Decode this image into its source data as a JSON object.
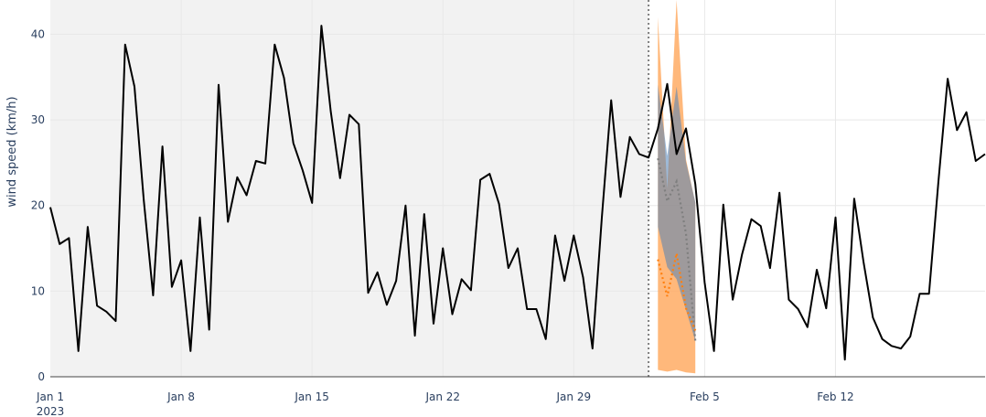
{
  "chart_data": {
    "type": "line",
    "title": "",
    "xlabel": "",
    "ylabel": "wind speed (km/h)",
    "xlim": [
      "2023-01-01",
      "2023-02-20"
    ],
    "ylim": [
      0,
      44
    ],
    "grid": true,
    "x_tick_labels": [
      {
        "date": "2023-01-01",
        "label": "Jan 1",
        "sublabel": "2023"
      },
      {
        "date": "2023-01-08",
        "label": "Jan 8"
      },
      {
        "date": "2023-01-15",
        "label": "Jan 15"
      },
      {
        "date": "2023-01-22",
        "label": "Jan 22"
      },
      {
        "date": "2023-01-29",
        "label": "Jan 29"
      },
      {
        "date": "2023-02-05",
        "label": "Feb 5"
      },
      {
        "date": "2023-02-12",
        "label": "Feb 12"
      }
    ],
    "y_ticks": [
      0,
      10,
      20,
      30,
      40
    ],
    "training_region": {
      "start": "2023-01-01",
      "end": "2023-02-02",
      "color": "#f2f2f2"
    },
    "forecast_start": "2023-02-02",
    "colors": {
      "observed": "#000000",
      "forecast_a": "#7f7f7f",
      "forecast_a_band": "#4f81b8",
      "forecast_b": "#ff7f0e",
      "forecast_b_band": "#ffa65a",
      "divider": "#7f7f7f",
      "grid": "#e8e8e8",
      "axis": "#444444"
    },
    "series": [
      {
        "role": "observed",
        "x": [
          "2023-01-01",
          "2023-01-01T12",
          "2023-01-02",
          "2023-01-02T12",
          "2023-01-03",
          "2023-01-03T12",
          "2023-01-04",
          "2023-01-04T12",
          "2023-01-05",
          "2023-01-05T12",
          "2023-01-06",
          "2023-01-06T12",
          "2023-01-07",
          "2023-01-07T12",
          "2023-01-08",
          "2023-01-08T12",
          "2023-01-09",
          "2023-01-09T12",
          "2023-01-10",
          "2023-01-10T12",
          "2023-01-11",
          "2023-01-11T12",
          "2023-01-12",
          "2023-01-12T12",
          "2023-01-13",
          "2023-01-13T12",
          "2023-01-14",
          "2023-01-14T12",
          "2023-01-15",
          "2023-01-15T12",
          "2023-01-16",
          "2023-01-16T12",
          "2023-01-17",
          "2023-01-17T12",
          "2023-01-18",
          "2023-01-18T12",
          "2023-01-19",
          "2023-01-19T12",
          "2023-01-20",
          "2023-01-20T12",
          "2023-01-21",
          "2023-01-21T12",
          "2023-01-22",
          "2023-01-22T12",
          "2023-01-23",
          "2023-01-23T12",
          "2023-01-24",
          "2023-01-24T12",
          "2023-01-25",
          "2023-01-25T12",
          "2023-01-26",
          "2023-01-26T12",
          "2023-01-27",
          "2023-01-27T12",
          "2023-01-28",
          "2023-01-28T12",
          "2023-01-29",
          "2023-01-29T12",
          "2023-01-30",
          "2023-01-30T12",
          "2023-01-31",
          "2023-01-31T12",
          "2023-02-01",
          "2023-02-01T12",
          "2023-02-02",
          "2023-02-02T12",
          "2023-02-03",
          "2023-02-03T12",
          "2023-02-04",
          "2023-02-04T12",
          "2023-02-05",
          "2023-02-05T12",
          "2023-02-06",
          "2023-02-06T12",
          "2023-02-07",
          "2023-02-07T12",
          "2023-02-08",
          "2023-02-08T12",
          "2023-02-09",
          "2023-02-09T12",
          "2023-02-10",
          "2023-02-10T12",
          "2023-02-11",
          "2023-02-11T12",
          "2023-02-12",
          "2023-02-12T12",
          "2023-02-13",
          "2023-02-13T12",
          "2023-02-14",
          "2023-02-14T12",
          "2023-02-15",
          "2023-02-15T12",
          "2023-02-16",
          "2023-02-16T12",
          "2023-02-17",
          "2023-02-17T12",
          "2023-02-18",
          "2023-02-18T12",
          "2023-02-19",
          "2023-02-19T12",
          "2023-02-20"
        ],
        "values": [
          19.8,
          15.5,
          16.2,
          3,
          17.5,
          8.3,
          7.6,
          6.5,
          38.8,
          33.9,
          20.6,
          9.5,
          26.9,
          10.5,
          13.6,
          3,
          18.6,
          5.5,
          34.1,
          18.1,
          23.3,
          21.2,
          25.2,
          24.9,
          38.8,
          34.9,
          27.3,
          24.1,
          20.3,
          41,
          31,
          23.2,
          30.6,
          29.5,
          9.8,
          12.2,
          8.4,
          11.2,
          20,
          4.8,
          19,
          6.2,
          15,
          7.3,
          11.4,
          10.1,
          23,
          23.7,
          20.2,
          12.7,
          15,
          7.9,
          7.9,
          4.4,
          16.5,
          11.2,
          16.5,
          11.6,
          3.3,
          18.6,
          32.3,
          21,
          28,
          26,
          25.6,
          29,
          34.2,
          26,
          29,
          22.5,
          11,
          3,
          20.1,
          9,
          14.3,
          18.4,
          17.6,
          12.7,
          21.5,
          9,
          7.9,
          5.8,
          12.5,
          8,
          18.6,
          2,
          20.8,
          13.4,
          6.9,
          4.4,
          3.6,
          3.3,
          4.7,
          9.7,
          9.7,
          22.7,
          34.8,
          28.8,
          30.9,
          25.2,
          26
        ]
      },
      {
        "role": "forecast_a",
        "x": [
          "2023-02-02T12",
          "2023-02-03",
          "2023-02-03T12",
          "2023-02-04",
          "2023-02-04T12"
        ],
        "values": [
          25.5,
          20.5,
          22.8,
          16.7,
          4.2
        ],
        "band_lower": [
          17.5,
          12.8,
          11.4,
          7.8,
          4.2
        ],
        "band_upper": [
          34.1,
          25.8,
          33.9,
          25.1,
          20.4
        ]
      },
      {
        "role": "forecast_b",
        "x": [
          "2023-02-02T12",
          "2023-02-03",
          "2023-02-03T12",
          "2023-02-04",
          "2023-02-04T12"
        ],
        "values": [
          13.7,
          9.4,
          14.4,
          8,
          5.4
        ],
        "band_lower": [
          0.8,
          0.6,
          0.8,
          0.5,
          0.4
        ],
        "band_upper": [
          42,
          22,
          44,
          25.4,
          20.3
        ]
      }
    ]
  }
}
